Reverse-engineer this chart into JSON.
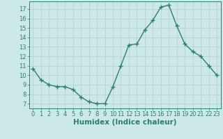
{
  "x": [
    0,
    1,
    2,
    3,
    4,
    5,
    6,
    7,
    8,
    9,
    10,
    11,
    12,
    13,
    14,
    15,
    16,
    17,
    18,
    19,
    20,
    21,
    22,
    23
  ],
  "y": [
    10.7,
    9.5,
    9.0,
    8.8,
    8.8,
    8.5,
    7.7,
    7.2,
    7.0,
    7.0,
    8.8,
    11.0,
    13.2,
    13.3,
    14.8,
    15.8,
    17.2,
    17.4,
    15.2,
    13.3,
    12.5,
    12.0,
    11.0,
    10.0
  ],
  "line_color": "#2e7d6e",
  "marker": "+",
  "marker_size": 4,
  "marker_linewidth": 1.0,
  "line_width": 1.0,
  "xlabel": "Humidex (Indice chaleur)",
  "xlabel_fontsize": 7.5,
  "ylabel_ticks": [
    7,
    8,
    9,
    10,
    11,
    12,
    13,
    14,
    15,
    16,
    17
  ],
  "xticks": [
    0,
    1,
    2,
    3,
    4,
    5,
    6,
    7,
    8,
    9,
    10,
    11,
    12,
    13,
    14,
    15,
    16,
    17,
    18,
    19,
    20,
    21,
    22,
    23
  ],
  "xlim": [
    -0.5,
    23.5
  ],
  "ylim": [
    6.5,
    17.8
  ],
  "bg_color": "#cce8e8",
  "grid_color": "#b8d0d0",
  "tick_fontsize": 6,
  "spine_color": "#2e7d6e"
}
